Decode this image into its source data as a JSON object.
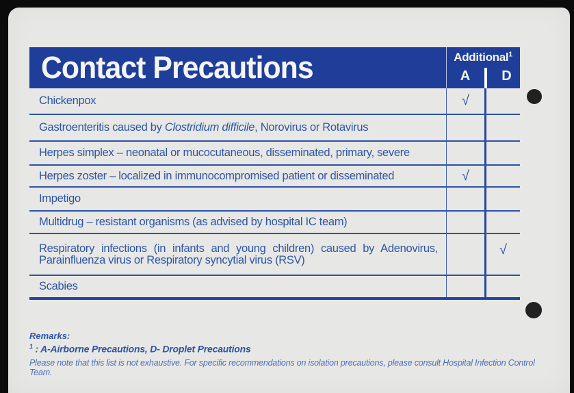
{
  "card": {
    "title": "Contact Precautions",
    "header": {
      "additional_label": "Additional",
      "additional_sup": "1",
      "col_a": "A",
      "col_d": "D"
    },
    "table": {
      "check_glyph": "√",
      "rows": [
        {
          "text": "Chickenpox",
          "a": "√",
          "d": ""
        },
        {
          "text_pre": "Gastroenteritis caused by ",
          "text_italic": "Clostridium difficile",
          "text_post": ", Norovirus or Rotavirus",
          "a": "",
          "d": ""
        },
        {
          "text": "Herpes simplex – neonatal or mucocutaneous, disseminated, primary, severe",
          "a": "",
          "d": ""
        },
        {
          "text": "Herpes zoster – localized in immunocompromised patient or disseminated",
          "a": "√",
          "d": ""
        },
        {
          "text": "Impetigo",
          "a": "",
          "d": ""
        },
        {
          "text": "Multidrug – resistant organisms (as advised by hospital IC team)",
          "a": "",
          "d": ""
        },
        {
          "text_line1": "Respiratory infections (in infants and young children) caused by Adenovirus,",
          "text_line2": "Parainfluenza virus or Respiratory syncytial virus (RSV)",
          "a": "",
          "d": "√"
        },
        {
          "text": "Scabies",
          "a": "",
          "d": ""
        }
      ]
    },
    "footer": {
      "remarks_label": "Remarks:",
      "legend_sup": "1",
      "legend_text": " : A-Airborne Precautions, D- Droplet Precautions",
      "note": "Please note that this list is not exhaustive. For specific recommendations on isolation precautions, please consult Hospital Infection Control Team."
    },
    "colors": {
      "header_blue": "#1e3e99",
      "text_blue": "#2e55a5",
      "card_bg": "#e7e7e5",
      "page_bg": "#0b0b0b"
    }
  }
}
